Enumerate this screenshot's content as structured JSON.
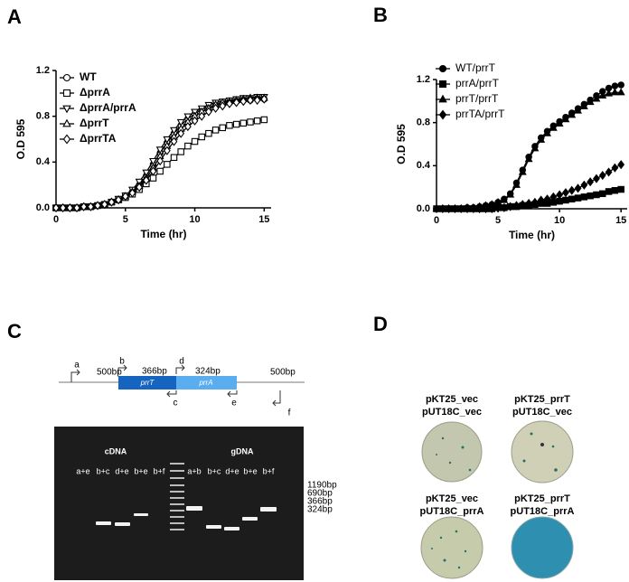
{
  "panel_labels": [
    "A",
    "B",
    "C",
    "D"
  ],
  "chart_data": [
    {
      "type": "line",
      "xlabel": "Time (hr)",
      "ylabel": "O.D 595",
      "x": [
        0,
        0.5,
        1,
        1.5,
        2,
        2.5,
        3,
        3.5,
        4,
        4.5,
        5,
        5.5,
        6,
        6.5,
        7,
        7.5,
        8,
        8.5,
        9,
        9.5,
        10,
        10.5,
        11,
        11.5,
        12,
        12.5,
        13,
        13.5,
        14,
        14.5,
        15
      ],
      "xlim": [
        0,
        15.5
      ],
      "xticks": [
        0,
        5,
        10,
        15
      ],
      "ylim": [
        0,
        1.2
      ],
      "yticks": [
        {
          "value": 0,
          "label": "0.0"
        },
        0.4,
        0.8,
        1.2
      ],
      "legend": "upper left",
      "series": [
        {
          "name": "WT",
          "color": "#000000",
          "marker": "circle",
          "filled": false,
          "values": [
            0,
            0,
            0,
            0,
            0.01,
            0.01,
            0.02,
            0.03,
            0.05,
            0.07,
            0.1,
            0.14,
            0.2,
            0.28,
            0.38,
            0.48,
            0.57,
            0.65,
            0.72,
            0.78,
            0.82,
            0.86,
            0.88,
            0.9,
            0.91,
            0.92,
            0.93,
            0.94,
            0.94,
            0.95,
            0.95
          ]
        },
        {
          "name": "ΔprrA",
          "color": "#000000",
          "marker": "square",
          "filled": false,
          "values": [
            0,
            0,
            0,
            0,
            0.01,
            0.01,
            0.02,
            0.03,
            0.05,
            0.07,
            0.09,
            0.12,
            0.16,
            0.21,
            0.26,
            0.32,
            0.38,
            0.44,
            0.49,
            0.54,
            0.58,
            0.62,
            0.65,
            0.68,
            0.7,
            0.72,
            0.73,
            0.74,
            0.75,
            0.76,
            0.77
          ]
        },
        {
          "name": "ΔprrA/prrA",
          "color": "#000000",
          "marker": "triangle-down",
          "filled": false,
          "values": [
            0,
            0,
            0,
            0,
            0.01,
            0.01,
            0.02,
            0.03,
            0.05,
            0.08,
            0.11,
            0.16,
            0.23,
            0.31,
            0.41,
            0.51,
            0.6,
            0.68,
            0.75,
            0.8,
            0.84,
            0.87,
            0.9,
            0.92,
            0.93,
            0.94,
            0.95,
            0.96,
            0.96,
            0.97,
            0.97
          ]
        },
        {
          "name": "ΔprrT",
          "color": "#000000",
          "marker": "triangle",
          "filled": false,
          "values": [
            0,
            0,
            0,
            0,
            0.01,
            0.01,
            0.02,
            0.03,
            0.05,
            0.07,
            0.1,
            0.14,
            0.19,
            0.26,
            0.35,
            0.45,
            0.54,
            0.62,
            0.69,
            0.75,
            0.8,
            0.84,
            0.87,
            0.9,
            0.92,
            0.93,
            0.94,
            0.95,
            0.96,
            0.96,
            0.96
          ]
        },
        {
          "name": "ΔprrTA",
          "color": "#000000",
          "marker": "diamond",
          "filled": false,
          "values": [
            0,
            0,
            0,
            0,
            0.01,
            0.01,
            0.02,
            0.03,
            0.05,
            0.07,
            0.1,
            0.13,
            0.18,
            0.24,
            0.32,
            0.41,
            0.5,
            0.58,
            0.65,
            0.71,
            0.76,
            0.8,
            0.84,
            0.87,
            0.89,
            0.91,
            0.92,
            0.93,
            0.94,
            0.94,
            0.95
          ]
        }
      ]
    },
    {
      "type": "line",
      "xlabel": "Time (hr)",
      "ylabel": "O.D 595",
      "x": [
        0,
        0.5,
        1,
        1.5,
        2,
        2.5,
        3,
        3.5,
        4,
        4.5,
        5,
        5.5,
        6,
        6.5,
        7,
        7.5,
        8,
        8.5,
        9,
        9.5,
        10,
        10.5,
        11,
        11.5,
        12,
        12.5,
        13,
        13.5,
        14,
        14.5,
        15
      ],
      "xlim": [
        0,
        15.5
      ],
      "xticks": [
        0,
        5,
        10,
        15
      ],
      "ylim": [
        0,
        1.2
      ],
      "yticks": [
        {
          "value": 0,
          "label": "0.0"
        },
        0.4,
        0.8,
        1.2
      ],
      "legend": "upper left",
      "series": [
        {
          "name": "WT/prrT",
          "color": "#000000",
          "marker": "circle",
          "filled": true,
          "values": [
            0,
            0,
            0,
            0,
            0,
            0.01,
            0.01,
            0.02,
            0.03,
            0.04,
            0.06,
            0.09,
            0.14,
            0.24,
            0.36,
            0.48,
            0.58,
            0.66,
            0.72,
            0.77,
            0.81,
            0.85,
            0.89,
            0.93,
            0.97,
            1.01,
            1.05,
            1.09,
            1.12,
            1.14,
            1.15
          ]
        },
        {
          "name": "prrA/prrT",
          "color": "#000000",
          "marker": "square",
          "filled": true,
          "values": [
            0,
            0,
            0,
            0,
            0,
            0,
            0,
            0,
            0,
            0,
            0.01,
            0.01,
            0.02,
            0.02,
            0.03,
            0.03,
            0.04,
            0.05,
            0.05,
            0.06,
            0.07,
            0.08,
            0.09,
            0.1,
            0.11,
            0.12,
            0.13,
            0.14,
            0.16,
            0.17,
            0.18
          ]
        },
        {
          "name": "prrT/prrT",
          "color": "#000000",
          "marker": "triangle",
          "filled": true,
          "values": [
            0,
            0,
            0,
            0,
            0,
            0.01,
            0.01,
            0.02,
            0.03,
            0.04,
            0.06,
            0.08,
            0.13,
            0.22,
            0.34,
            0.46,
            0.56,
            0.64,
            0.7,
            0.75,
            0.79,
            0.83,
            0.87,
            0.91,
            0.95,
            0.99,
            1.02,
            1.05,
            1.07,
            1.08,
            1.08
          ]
        },
        {
          "name": "prrTA/prrT",
          "color": "#000000",
          "marker": "diamond",
          "filled": true,
          "values": [
            0,
            0,
            0,
            0,
            0,
            0,
            0,
            0,
            0,
            0,
            0.01,
            0.01,
            0.02,
            0.03,
            0.04,
            0.05,
            0.06,
            0.08,
            0.09,
            0.11,
            0.13,
            0.15,
            0.17,
            0.19,
            0.22,
            0.25,
            0.28,
            0.31,
            0.34,
            0.38,
            0.41
          ]
        }
      ]
    }
  ],
  "gel_schematic": {
    "distances": [
      "500bp",
      "366bp",
      "324bp",
      "500bp"
    ],
    "primers": [
      "a",
      "b",
      "c",
      "d",
      "e",
      "f"
    ],
    "genes": [
      "prrT",
      "prrA"
    ]
  },
  "gel": {
    "groups": [
      "cDNA",
      "gDNA"
    ],
    "lanes": [
      "a+e",
      "b+c",
      "d+e",
      "b+e",
      "b+f",
      "a+b",
      "b+c",
      "d+e",
      "b+e",
      "b+f"
    ],
    "size_markers": [
      "1190bp",
      "690bp",
      "366bp",
      "324bp"
    ]
  },
  "plates": [
    {
      "lines": [
        "pKT25_vec",
        "pUT18C_vec"
      ]
    },
    {
      "lines": [
        "pKT25_prrT",
        "pUT18C_vec"
      ]
    },
    {
      "lines": [
        "pKT25_vec",
        "pUT18C_prrA"
      ]
    },
    {
      "lines": [
        "pKT25_prrT",
        "pUT18C_prrA"
      ]
    }
  ]
}
